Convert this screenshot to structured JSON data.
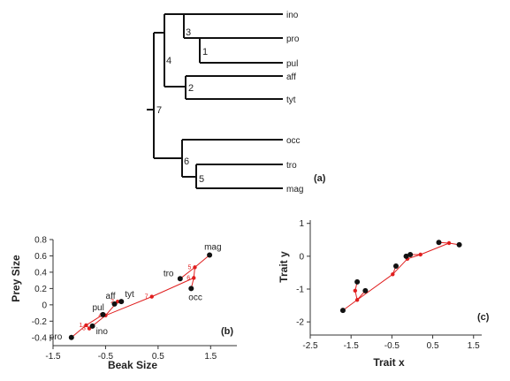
{
  "tree": {
    "panel_label": "(a)",
    "tips": [
      "ino",
      "pro",
      "pul",
      "aff",
      "tyt",
      "occ",
      "tro",
      "mag"
    ],
    "nodes": [
      "1",
      "2",
      "3",
      "4",
      "5",
      "6",
      "7"
    ]
  },
  "chart_data": [
    {
      "type": "scatter",
      "panel_label": "(b)",
      "xlabel": "Beak Size",
      "ylabel": "Prey Size",
      "xlim": [
        -1.5,
        2.0
      ],
      "ylim": [
        -0.5,
        0.8
      ],
      "xticks": [
        "-1.5",
        "-0.5",
        "0.5",
        "1.5"
      ],
      "xtick_values": [
        -1.5,
        -0.5,
        0.5,
        1.5
      ],
      "yticks": [
        "-0.4",
        "-0.2",
        "0",
        "0.2",
        "0.4",
        "0.6",
        "0.8"
      ],
      "ytick_values": [
        -0.4,
        -0.2,
        0,
        0.2,
        0.4,
        0.6,
        0.8
      ],
      "points": [
        {
          "label": "pro",
          "x": -1.15,
          "y": -0.4
        },
        {
          "label": "ino",
          "x": -0.75,
          "y": -0.26
        },
        {
          "label": "pul",
          "x": -0.55,
          "y": -0.12
        },
        {
          "label": "aff",
          "x": -0.33,
          "y": 0.01
        },
        {
          "label": "tyt",
          "x": -0.2,
          "y": 0.04
        },
        {
          "label": "tro",
          "x": 0.92,
          "y": 0.32
        },
        {
          "label": "occ",
          "x": 1.13,
          "y": 0.2
        },
        {
          "label": "mag",
          "x": 1.48,
          "y": 0.61
        }
      ],
      "ancestors": [
        {
          "label": "1",
          "x": -0.87,
          "y": -0.25
        },
        {
          "label": "2",
          "x": -0.27,
          "y": 0.04
        },
        {
          "label": "3",
          "x": -0.81,
          "y": -0.29
        },
        {
          "label": "4",
          "x": -0.5,
          "y": -0.13
        },
        {
          "label": "5",
          "x": 1.2,
          "y": 0.46
        },
        {
          "label": "6",
          "x": 1.18,
          "y": 0.33
        },
        {
          "label": "7",
          "x": 0.38,
          "y": 0.1
        }
      ],
      "edges": [
        [
          "pro",
          "1"
        ],
        [
          "pul",
          "1"
        ],
        [
          "1",
          "3"
        ],
        [
          "ino",
          "3"
        ],
        [
          "3",
          "4"
        ],
        [
          "aff",
          "2"
        ],
        [
          "tyt",
          "2"
        ],
        [
          "2",
          "4"
        ],
        [
          "4",
          "7"
        ],
        [
          "7",
          "6"
        ],
        [
          "6",
          "occ"
        ],
        [
          "6",
          "5"
        ],
        [
          "5",
          "tro"
        ],
        [
          "5",
          "mag"
        ]
      ]
    },
    {
      "type": "scatter",
      "panel_label": "(c)",
      "xlabel": "Trait x",
      "ylabel": "Trait y",
      "xlim": [
        -2.5,
        1.7
      ],
      "ylim": [
        -2.4,
        1.1
      ],
      "xticks": [
        "-2.5",
        "-1.5",
        "-0.5",
        "0.5",
        "1.5"
      ],
      "xtick_values": [
        -2.5,
        -1.5,
        -0.5,
        0.5,
        1.5
      ],
      "yticks": [
        "-2",
        "-1",
        "0",
        "1"
      ],
      "ytick_values": [
        -2,
        -1,
        0,
        1
      ],
      "points": [
        {
          "x": -1.7,
          "y": -1.65
        },
        {
          "x": -1.35,
          "y": -0.78
        },
        {
          "x": -1.15,
          "y": -1.05
        },
        {
          "x": -0.4,
          "y": -0.3
        },
        {
          "x": -0.15,
          "y": 0.0
        },
        {
          "x": -0.05,
          "y": 0.05
        },
        {
          "x": 0.65,
          "y": 0.42
        },
        {
          "x": 1.15,
          "y": 0.35
        }
      ],
      "ancestors": [
        {
          "x": -1.35,
          "y": -1.33
        },
        {
          "x": -1.4,
          "y": -1.05
        },
        {
          "x": -0.48,
          "y": -0.55
        },
        {
          "x": 0.2,
          "y": 0.05
        },
        {
          "x": -0.12,
          "y": -0.08
        },
        {
          "x": 0.9,
          "y": 0.4
        }
      ],
      "edges": [
        [
          0,
          0
        ],
        [
          0,
          1
        ],
        [
          1,
          1
        ],
        [
          2,
          1
        ],
        [
          1,
          2
        ],
        [
          2,
          3
        ],
        [
          2,
          4
        ],
        [
          4,
          4
        ],
        [
          4,
          5
        ],
        [
          3,
          5
        ],
        [
          5,
          6
        ],
        [
          5,
          7
        ]
      ]
    }
  ]
}
